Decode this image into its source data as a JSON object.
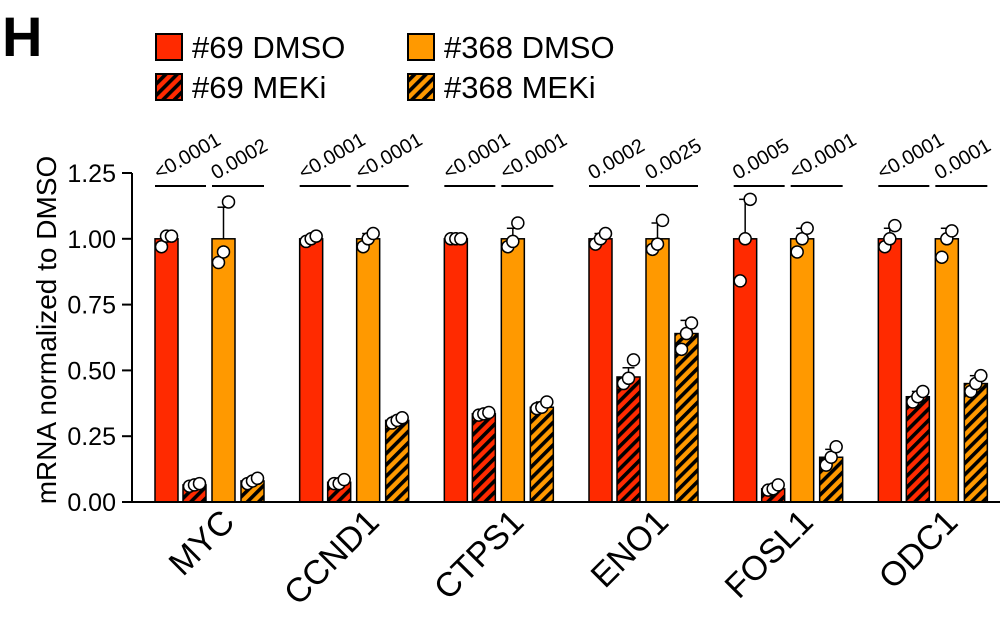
{
  "panel_label": "H",
  "colors": {
    "#69": "#ff2a00",
    "#368": "#ff9900",
    "point_fill": "#ffffff"
  },
  "chart_data": {
    "type": "bar",
    "title": "",
    "xlabel": "",
    "ylabel": "mRNA normalized to DMSO",
    "ylim": [
      0,
      1.25
    ],
    "yticks": [
      "0.00",
      "0.25",
      "0.50",
      "0.75",
      "1.00",
      "1.25"
    ],
    "legend_position": "top",
    "categories": [
      "MYC",
      "CCND1",
      "CTPS1",
      "ENO1",
      "FOSL1",
      "ODC1"
    ],
    "series": [
      {
        "name": "#69 DMSO",
        "color": "#ff2a00",
        "hatched": false,
        "values": [
          1.0,
          1.0,
          1.0,
          1.0,
          1.0,
          1.0
        ],
        "error_upper": [
          1.01,
          1.0,
          1.0,
          1.02,
          1.15,
          1.04
        ],
        "points": [
          [
            0.97,
            1.01,
            1.01
          ],
          [
            0.99,
            1.0,
            1.01
          ],
          [
            1.0,
            1.0,
            1.0
          ],
          [
            0.98,
            1.0,
            1.02
          ],
          [
            0.84,
            1.0,
            1.15
          ],
          [
            0.97,
            1.0,
            1.05
          ]
        ]
      },
      {
        "name": "#69 MEKi",
        "color": "#ff2a00",
        "hatched": true,
        "values": [
          0.065,
          0.075,
          0.335,
          0.475,
          0.05,
          0.4
        ],
        "error_upper": [
          0.07,
          0.08,
          0.34,
          0.51,
          0.06,
          0.42
        ],
        "points": [
          [
            0.06,
            0.065,
            0.07
          ],
          [
            0.07,
            0.07,
            0.085
          ],
          [
            0.33,
            0.335,
            0.34
          ],
          [
            0.45,
            0.47,
            0.54
          ],
          [
            0.045,
            0.05,
            0.065
          ],
          [
            0.38,
            0.4,
            0.42
          ]
        ]
      },
      {
        "name": "#368 DMSO",
        "color": "#ff9900",
        "hatched": false,
        "values": [
          1.0,
          1.0,
          1.0,
          1.0,
          1.0,
          1.0
        ],
        "error_upper": [
          1.12,
          1.02,
          1.04,
          1.06,
          1.04,
          1.04
        ],
        "points": [
          [
            0.91,
            0.95,
            1.14
          ],
          [
            0.97,
            1.0,
            1.02
          ],
          [
            0.97,
            0.99,
            1.06
          ],
          [
            0.96,
            0.98,
            1.07
          ],
          [
            0.95,
            1.0,
            1.04
          ],
          [
            0.93,
            1.0,
            1.03
          ]
        ]
      },
      {
        "name": "#368 MEKi",
        "color": "#ff9900",
        "hatched": true,
        "values": [
          0.08,
          0.31,
          0.36,
          0.64,
          0.17,
          0.45
        ],
        "error_upper": [
          0.09,
          0.325,
          0.38,
          0.69,
          0.2,
          0.48
        ],
        "points": [
          [
            0.07,
            0.08,
            0.09
          ],
          [
            0.3,
            0.31,
            0.32
          ],
          [
            0.355,
            0.36,
            0.38
          ],
          [
            0.58,
            0.64,
            0.68
          ],
          [
            0.14,
            0.17,
            0.21
          ],
          [
            0.42,
            0.45,
            0.48
          ]
        ]
      }
    ],
    "annotations": [
      {
        "category": "MYC",
        "comparison": "#69",
        "label": "<0.0001"
      },
      {
        "category": "MYC",
        "comparison": "#368",
        "label": "0.0002"
      },
      {
        "category": "CCND1",
        "comparison": "#69",
        "label": "<0.0001"
      },
      {
        "category": "CCND1",
        "comparison": "#368",
        "label": "<0.0001"
      },
      {
        "category": "CTPS1",
        "comparison": "#69",
        "label": "<0.0001"
      },
      {
        "category": "CTPS1",
        "comparison": "#368",
        "label": "<0.0001"
      },
      {
        "category": "ENO1",
        "comparison": "#69",
        "label": "0.0002"
      },
      {
        "category": "ENO1",
        "comparison": "#368",
        "label": "0.0025"
      },
      {
        "category": "FOSL1",
        "comparison": "#69",
        "label": "0.0005"
      },
      {
        "category": "FOSL1",
        "comparison": "#368",
        "label": "<0.0001"
      },
      {
        "category": "ODC1",
        "comparison": "#69",
        "label": "<0.0001"
      },
      {
        "category": "ODC1",
        "comparison": "#368",
        "label": "0.0001"
      }
    ]
  }
}
